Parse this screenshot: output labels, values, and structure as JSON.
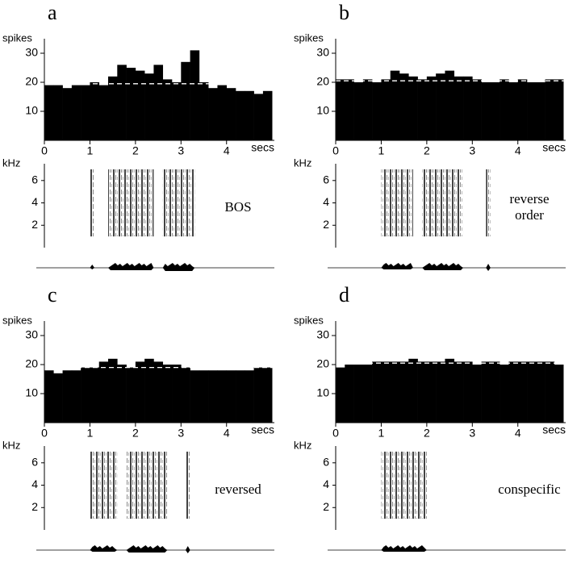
{
  "chart_data": [
    {
      "type": "histogram",
      "panel": "a",
      "ylabel": "spikes",
      "xlabel": "secs",
      "bins": [
        0,
        0.2,
        0.4,
        0.6,
        0.8,
        1.0,
        1.2,
        1.4,
        1.6,
        1.8,
        2.0,
        2.2,
        2.4,
        2.6,
        2.8,
        3.0,
        3.2,
        3.4,
        3.6,
        3.8,
        4.0,
        4.2,
        4.4,
        4.6,
        4.8,
        5.0
      ],
      "values": [
        19,
        19,
        18,
        19,
        19,
        20,
        19,
        22,
        26,
        25,
        24,
        23,
        26,
        21,
        20,
        27,
        31,
        20,
        18,
        19,
        18,
        17,
        17,
        16,
        17
      ],
      "baseline": 19.5,
      "color": "#000000",
      "xlim": [
        0,
        5.05
      ],
      "xticks": [
        0,
        1,
        2,
        3,
        4
      ],
      "ylim": [
        0,
        35
      ],
      "yticks": [
        10,
        20,
        30
      ],
      "spectrogram": {
        "ylabel": "kHz",
        "ylim": [
          0,
          7.5
        ],
        "yticks": [
          2,
          4,
          6
        ],
        "segments": [
          [
            1.0,
            1.1
          ],
          [
            1.4,
            2.4
          ],
          [
            2.6,
            3.3
          ]
        ],
        "label": [
          "BOS"
        ]
      }
    },
    {
      "type": "histogram",
      "panel": "b",
      "ylabel": "spikes",
      "xlabel": "secs",
      "bins": [
        0,
        0.2,
        0.4,
        0.6,
        0.8,
        1.0,
        1.2,
        1.4,
        1.6,
        1.8,
        2.0,
        2.2,
        2.4,
        2.6,
        2.8,
        3.0,
        3.2,
        3.4,
        3.6,
        3.8,
        4.0,
        4.2,
        4.4,
        4.6,
        4.8,
        5.0
      ],
      "values": [
        21,
        21,
        20,
        21,
        20,
        21,
        24,
        23,
        22,
        21,
        22,
        23,
        24,
        22,
        22,
        21,
        20,
        20,
        21,
        20,
        21,
        20,
        20,
        21,
        21
      ],
      "baseline": 20.5,
      "color": "#000000",
      "xlim": [
        0,
        5.05
      ],
      "xticks": [
        0,
        1,
        2,
        3,
        4
      ],
      "ylim": [
        0,
        35
      ],
      "yticks": [
        10,
        20,
        30
      ],
      "spectrogram": {
        "ylabel": "kHz",
        "ylim": [
          0,
          7.5
        ],
        "yticks": [
          2,
          4,
          6
        ],
        "segments": [
          [
            1.0,
            1.7
          ],
          [
            1.9,
            2.8
          ],
          [
            3.3,
            3.4
          ]
        ],
        "label": [
          "reverse",
          "order"
        ]
      }
    },
    {
      "type": "histogram",
      "panel": "c",
      "ylabel": "spikes",
      "xlabel": "secs",
      "bins": [
        0,
        0.2,
        0.4,
        0.6,
        0.8,
        1.0,
        1.2,
        1.4,
        1.6,
        1.8,
        2.0,
        2.2,
        2.4,
        2.6,
        2.8,
        3.0,
        3.2,
        3.4,
        3.6,
        3.8,
        4.0,
        4.2,
        4.4,
        4.6,
        4.8,
        5.0
      ],
      "values": [
        18,
        17,
        18,
        18,
        19,
        19,
        21,
        22,
        20,
        19,
        21,
        22,
        21,
        20,
        20,
        19,
        18,
        18,
        18,
        18,
        18,
        18,
        18,
        19,
        19
      ],
      "baseline": 19,
      "color": "#000000",
      "xlim": [
        0,
        5.05
      ],
      "xticks": [
        0,
        1,
        2,
        3,
        4
      ],
      "ylim": [
        0,
        35
      ],
      "yticks": [
        10,
        20,
        30
      ],
      "spectrogram": {
        "ylabel": "kHz",
        "ylim": [
          0,
          7.5
        ],
        "yticks": [
          2,
          4,
          6
        ],
        "segments": [
          [
            1.0,
            1.6
          ],
          [
            1.8,
            2.7
          ],
          [
            3.1,
            3.2
          ]
        ],
        "label": [
          "reversed"
        ]
      }
    },
    {
      "type": "histogram",
      "panel": "d",
      "ylabel": "spikes",
      "xlabel": "secs",
      "bins": [
        0,
        0.2,
        0.4,
        0.6,
        0.8,
        1.0,
        1.2,
        1.4,
        1.6,
        1.8,
        2.0,
        2.2,
        2.4,
        2.6,
        2.8,
        3.0,
        3.2,
        3.4,
        3.6,
        3.8,
        4.0,
        4.2,
        4.4,
        4.6,
        4.8,
        5.0
      ],
      "values": [
        19,
        20,
        20,
        20,
        21,
        21,
        21,
        21,
        22,
        21,
        21,
        21,
        22,
        21,
        21,
        20,
        21,
        21,
        20,
        21,
        21,
        21,
        21,
        21,
        20
      ],
      "baseline": 20.5,
      "color": "#000000",
      "xlim": [
        0,
        5.05
      ],
      "xticks": [
        0,
        1,
        2,
        3,
        4
      ],
      "ylim": [
        0,
        35
      ],
      "yticks": [
        10,
        20,
        30
      ],
      "spectrogram": {
        "ylabel": "kHz",
        "ylim": [
          0,
          7.5
        ],
        "yticks": [
          2,
          4,
          6
        ],
        "segments": [
          [
            1.0,
            2.0
          ]
        ],
        "label": [
          "conspecific"
        ]
      }
    }
  ]
}
